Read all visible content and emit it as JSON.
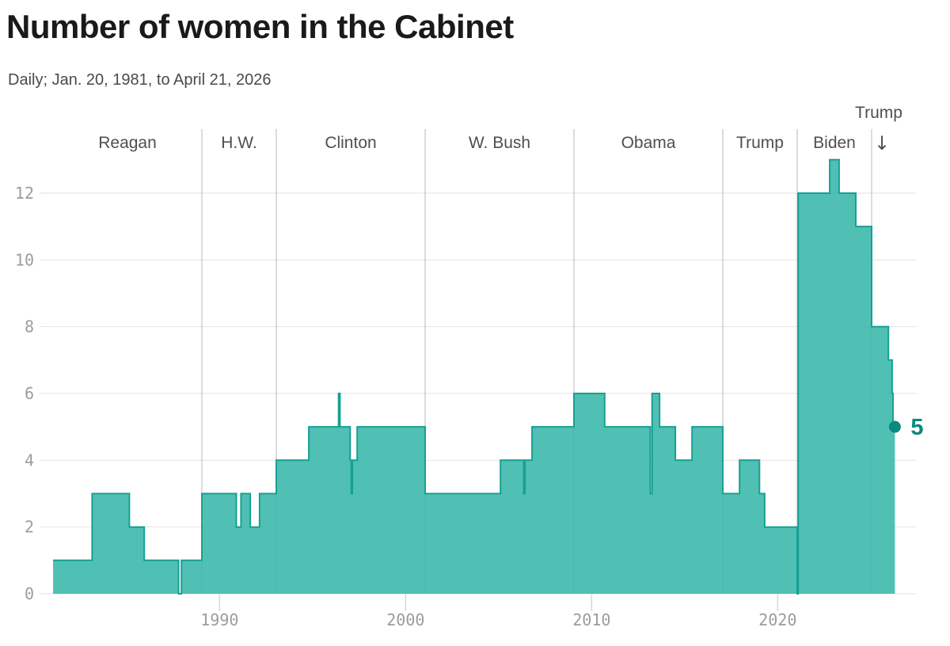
{
  "chart_data": {
    "type": "area",
    "interpolation": "step-after",
    "title": "Number of women in the Cabinet",
    "subtitle": "Daily; Jan. 20, 1981, to April 21, 2026",
    "x_range": [
      1981.05,
      2026.3
    ],
    "y_range": [
      0,
      13
    ],
    "x_ticks": [
      1990,
      2000,
      2010,
      2020
    ],
    "y_ticks": [
      0,
      2,
      4,
      6,
      8,
      10,
      12
    ],
    "grid": true,
    "series_name": "Number of women in the Cabinet (daily)",
    "points": [
      [
        1981.05,
        1
      ],
      [
        1983.15,
        3
      ],
      [
        1985.15,
        2
      ],
      [
        1985.95,
        1
      ],
      [
        1987.8,
        0
      ],
      [
        1987.95,
        1
      ],
      [
        1989.05,
        3
      ],
      [
        1990.9,
        2
      ],
      [
        1991.15,
        3
      ],
      [
        1991.65,
        2
      ],
      [
        1992.15,
        3
      ],
      [
        1993.05,
        4
      ],
      [
        1994.8,
        5
      ],
      [
        1996.4,
        6
      ],
      [
        1996.47,
        5
      ],
      [
        1997.02,
        4
      ],
      [
        1997.08,
        3
      ],
      [
        1997.14,
        4
      ],
      [
        1997.4,
        5
      ],
      [
        2001.05,
        3
      ],
      [
        2005.1,
        4
      ],
      [
        2006.35,
        3
      ],
      [
        2006.42,
        4
      ],
      [
        2006.8,
        5
      ],
      [
        2009.05,
        6
      ],
      [
        2010.7,
        5
      ],
      [
        2013.15,
        3
      ],
      [
        2013.25,
        6
      ],
      [
        2013.65,
        5
      ],
      [
        2014.5,
        4
      ],
      [
        2015.4,
        5
      ],
      [
        2017.05,
        3
      ],
      [
        2017.95,
        4
      ],
      [
        2019.02,
        3
      ],
      [
        2019.3,
        2
      ],
      [
        2021.05,
        0
      ],
      [
        2021.1,
        12
      ],
      [
        2022.8,
        13
      ],
      [
        2023.3,
        12
      ],
      [
        2024.2,
        11
      ],
      [
        2025.05,
        8
      ],
      [
        2025.95,
        7
      ],
      [
        2026.15,
        6
      ],
      [
        2026.2,
        5
      ]
    ],
    "end_point": {
      "year": 2026.3,
      "value": 5,
      "label": "5"
    },
    "presidents": [
      {
        "name": "Reagan",
        "start": 1981.05
      },
      {
        "name": "H.W.",
        "start": 1989.05
      },
      {
        "name": "Clinton",
        "start": 1993.05
      },
      {
        "name": "W. Bush",
        "start": 2001.05
      },
      {
        "name": "Obama",
        "start": 2009.05
      },
      {
        "name": "Trump",
        "start": 2017.05
      },
      {
        "name": "Biden",
        "start": 2021.05
      },
      {
        "name": "Trump",
        "start": 2025.05,
        "label_style": "above",
        "arrow": "↓"
      }
    ],
    "colors": {
      "area_fill": "#3db9ac",
      "area_stroke": "#17a093",
      "accent_dark": "#0a8a7e",
      "gridline": "#e2e2e2",
      "divider": "#b8b8b8",
      "axis_tick": "#d8d8d8",
      "tick_label": "#9c9c9c",
      "president_label": "#4f4f4f",
      "title": "#1a1a1a",
      "subtitle": "#4a4a4a"
    }
  }
}
